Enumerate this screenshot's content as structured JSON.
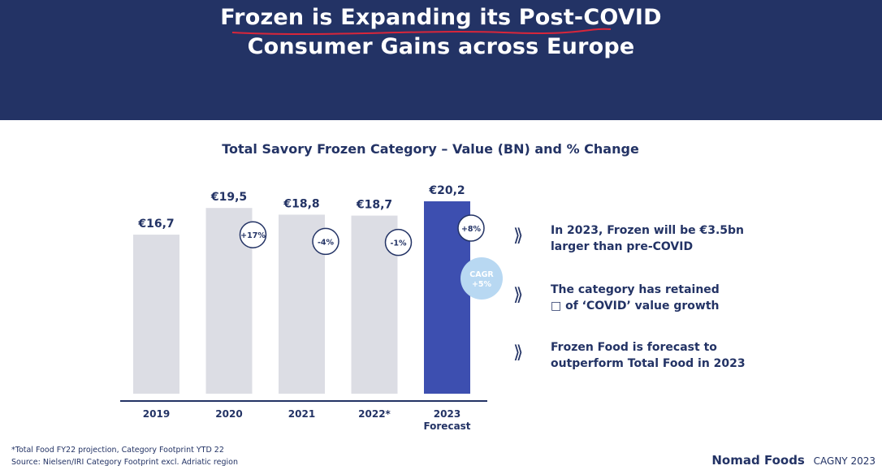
{
  "header": {
    "title_line1": "Frozen is Expanding its Post-COVID",
    "title_line2": "Consumer Gains across Europe"
  },
  "colors": {
    "header_bg": "#233365",
    "bar_grey": "#dcdde4",
    "bar_highlight": "#3d4fb0",
    "accent_text": "#233365",
    "cagr_bubble": "#b8d8f2",
    "underline": "#d9263a"
  },
  "chart_data": {
    "type": "bar",
    "title": "Total Savory Frozen Category – Value (BN) and % Change",
    "categories": [
      "2019",
      "2020",
      "2021",
      "2022*",
      "2023"
    ],
    "category_sublabels": [
      "",
      "",
      "",
      "",
      "Forecast"
    ],
    "values": [
      16.7,
      19.5,
      18.8,
      18.7,
      20.2
    ],
    "value_labels": [
      "€16,7",
      "€19,5",
      "€18,8",
      "€18,7",
      "€20,2"
    ],
    "pct_change_labels": [
      "",
      "+17%",
      "-4%",
      "-1%",
      "+8%"
    ],
    "highlight_index": 4,
    "cagr_label_line1": "CAGR",
    "cagr_label_line2": "+5%",
    "xlabel": "",
    "ylabel": "",
    "grid": false,
    "legend": "none"
  },
  "bullets": [
    {
      "icon": "chevron-double-right-icon",
      "text_line1": "In 2023, Frozen will be €3.5bn",
      "text_line2": "larger than pre-COVID"
    },
    {
      "icon": "chevron-double-right-icon",
      "text_line1": "The category has retained",
      "text_line2": "□ of ‘COVID’ value growth"
    },
    {
      "icon": "chevron-double-right-icon",
      "text_line1": "Frozen Food is forecast to",
      "text_line2": "outperform Total Food in 2023"
    }
  ],
  "footer": {
    "note": "*Total Food FY22 projection, Category Footprint YTD 22",
    "source": "Source: Nielsen/IRI Category Footprint excl. Adriatic region",
    "brand": "Nomad Foods",
    "event": "CAGNY 2023"
  }
}
